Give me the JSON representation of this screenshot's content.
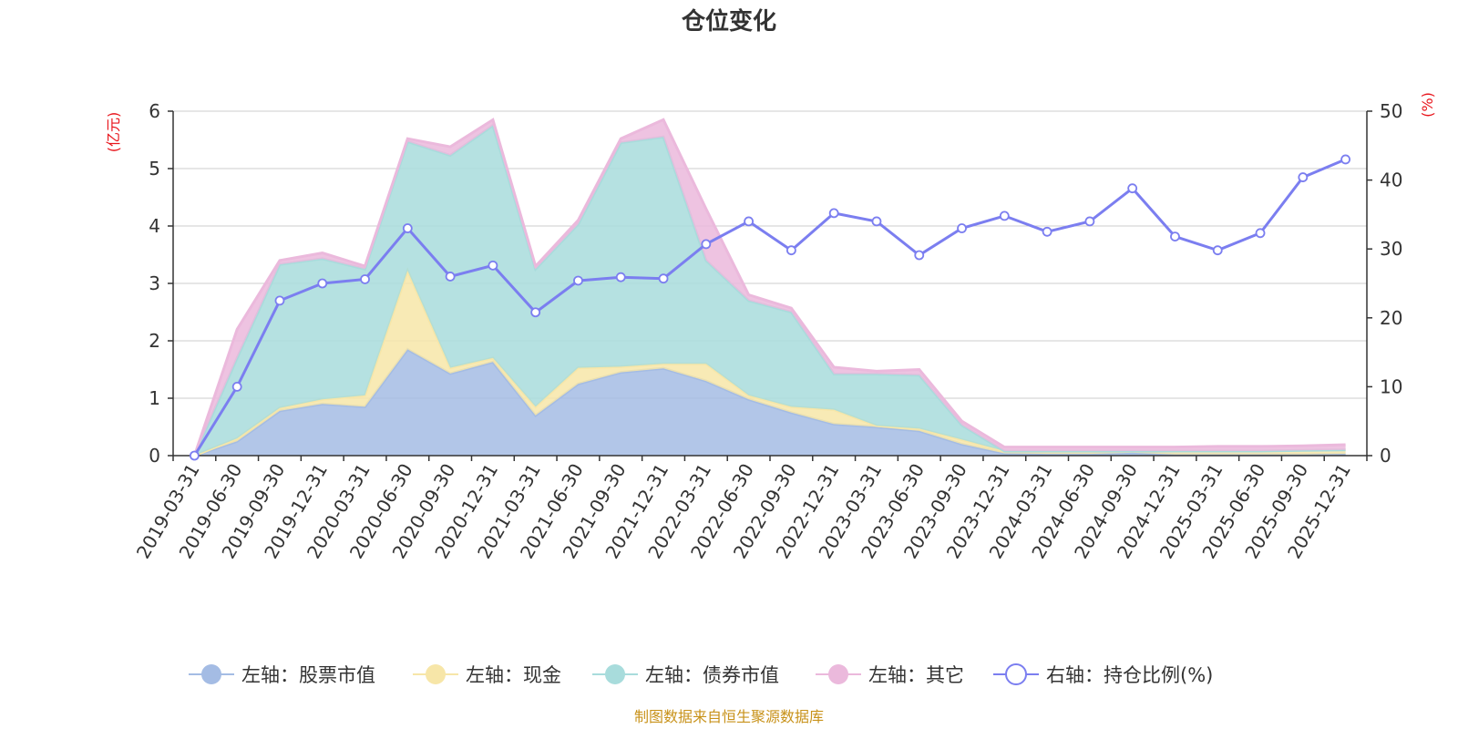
{
  "chart_data": {
    "type": "area+line",
    "title": "仓位变化",
    "left_axis_unit": "(亿元)",
    "right_axis_unit": "(%)",
    "ylim_left": [
      0,
      6
    ],
    "ylim_right": [
      0,
      50
    ],
    "left_ticks": [
      "0",
      "1",
      "2",
      "3",
      "4",
      "5",
      "6"
    ],
    "right_ticks": [
      "0",
      "10",
      "20",
      "30",
      "40",
      "50"
    ],
    "categories": [
      "2019-03-31",
      "2019-06-30",
      "2019-09-30",
      "2019-12-31",
      "2020-03-31",
      "2020-06-30",
      "2020-09-30",
      "2020-12-31",
      "2021-03-31",
      "2021-06-30",
      "2021-09-30",
      "2021-12-31",
      "2022-03-31",
      "2022-06-30",
      "2022-09-30",
      "2022-12-31",
      "2023-03-31",
      "2023-06-30",
      "2023-09-30",
      "2023-12-31",
      "2024-03-31",
      "2024-06-30",
      "2024-09-30",
      "2024-12-31",
      "2025-03-31",
      "2025-06-30",
      "2025-09-30",
      "2025-12-31"
    ],
    "series": [
      {
        "name": "左轴：股票市值",
        "axis": "left",
        "type": "stacked-area",
        "color": "#a4bce4",
        "values": [
          0,
          0.25,
          0.78,
          0.9,
          0.85,
          1.85,
          1.43,
          1.63,
          0.7,
          1.25,
          1.45,
          1.52,
          1.3,
          0.98,
          0.75,
          0.55,
          0.5,
          0.43,
          0.2,
          0.04,
          0.03,
          0.03,
          0.05,
          0.02,
          0.02,
          0.02,
          0.02,
          0.03
        ]
      },
      {
        "name": "左轴：现金",
        "axis": "left",
        "type": "stacked-area",
        "color": "#f7e6a8",
        "values": [
          0,
          0.05,
          0.05,
          0.08,
          0.2,
          1.37,
          0.1,
          0.07,
          0.15,
          0.28,
          0.1,
          0.08,
          0.3,
          0.07,
          0.1,
          0.25,
          0.02,
          0.04,
          0.08,
          0.04,
          0.05,
          0.05,
          0.03,
          0.06,
          0.06,
          0.06,
          0.07,
          0.07
        ]
      },
      {
        "name": "左轴：债券市值",
        "axis": "left",
        "type": "stacked-area",
        "color": "#a8dcdc",
        "values": [
          0,
          1.4,
          2.5,
          2.45,
          2.2,
          2.25,
          3.7,
          4.05,
          2.4,
          2.5,
          3.9,
          3.95,
          1.8,
          1.65,
          1.65,
          0.62,
          0.9,
          0.93,
          0.25,
          0.0,
          0.0,
          0.0,
          0.0,
          0.0,
          0.0,
          0.0,
          0.0,
          0.0
        ]
      },
      {
        "name": "左轴：其它",
        "axis": "left",
        "type": "stacked-area",
        "color": "#ebb9dc",
        "values": [
          0,
          0.5,
          0.07,
          0.1,
          0.05,
          0.05,
          0.15,
          0.1,
          0.05,
          0.07,
          0.07,
          0.3,
          0.9,
          0.1,
          0.07,
          0.12,
          0.05,
          0.1,
          0.07,
          0.07,
          0.07,
          0.07,
          0.07,
          0.07,
          0.08,
          0.08,
          0.08,
          0.09
        ]
      },
      {
        "name": "右轴：持仓比例(%)",
        "axis": "right",
        "type": "line",
        "color": "#7b7ef0",
        "values": [
          0,
          10,
          22.5,
          25,
          25.6,
          33,
          26,
          27.6,
          20.8,
          25.4,
          25.9,
          25.7,
          30.7,
          34,
          29.8,
          35.2,
          34,
          29.1,
          33,
          34.8,
          32.5,
          34,
          38.8,
          31.8,
          29.8,
          32.3,
          40.4,
          43
        ]
      }
    ],
    "grid": true,
    "legend_position": "bottom"
  },
  "footer": {
    "source": "制图数据来自恒生聚源数据库"
  }
}
